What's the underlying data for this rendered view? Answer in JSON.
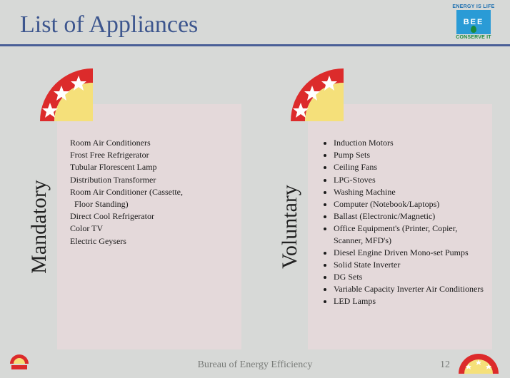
{
  "colors": {
    "slide_bg": "#d7d9d7",
    "title": "#3d568e",
    "underline": "#4a5f97",
    "panel_bg": "#e4d9da",
    "text": "#1a1a1a",
    "vlabel": "#222222",
    "fan_red": "#dc2b2b",
    "fan_yellow": "#f5e07a",
    "fan_star": "#ffffff",
    "logo_top": "#1c6fb0",
    "logo_sq": "#2a9bd6",
    "logo_green": "#1a8a3c",
    "logo_white": "#ffffff",
    "footer_text": "#7a7d7a"
  },
  "title": "List of Appliances",
  "logo": {
    "top_text": "ENERGY IS LIFE",
    "mid_text": "BEE",
    "bot_text": "CONSERVE IT"
  },
  "mandatory": {
    "label": "Mandatory",
    "items": [
      "Room Air Conditioners",
      "Frost Free Refrigerator",
      "Tubular  Florescent Lamp",
      "Distribution Transformer",
      "Room Air Conditioner (Cassette,",
      " Floor Standing)",
      "Direct Cool Refrigerator",
      "Color TV",
      "Electric Geysers"
    ]
  },
  "voluntary": {
    "label": "Voluntary",
    "items": [
      "Induction Motors",
      "Pump Sets",
      "Ceiling Fans",
      "LPG-Stoves",
      "Washing Machine",
      "Computer (Notebook/Laptops)",
      "Ballast (Electronic/Magnetic)",
      "Office Equipment's (Printer, Copier, Scanner, MFD's)",
      "Diesel Engine Driven Mono-set Pumps",
      "Solid State Inverter",
      "DG Sets",
      "Variable Capacity Inverter Air Conditioners",
      "LED Lamps"
    ]
  },
  "footer": {
    "org": "Bureau of Energy Efficiency",
    "page": "12"
  }
}
